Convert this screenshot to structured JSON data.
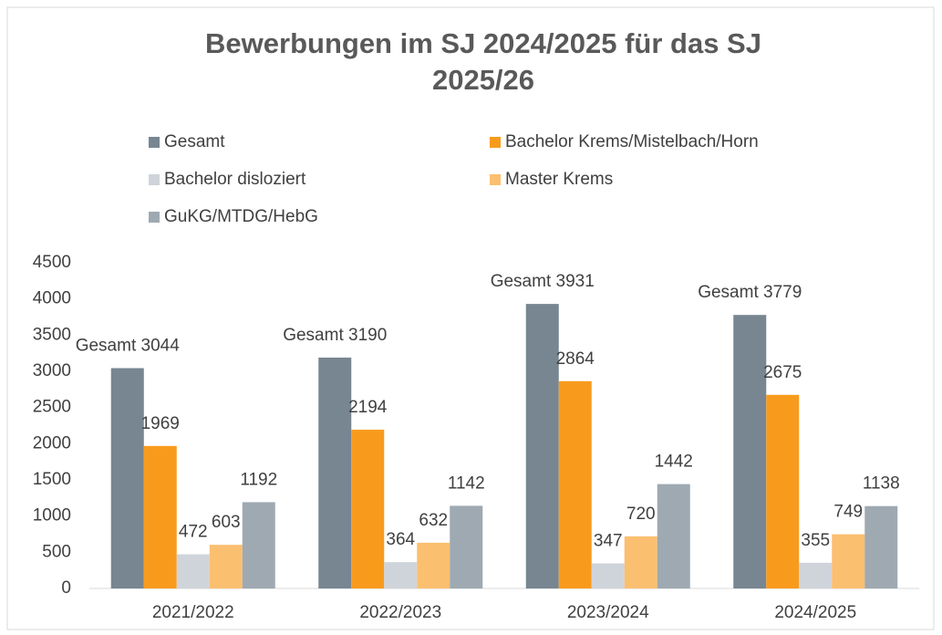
{
  "chart_data": {
    "type": "bar",
    "title": "Bewerbungen im SJ 2024/2025 für das SJ 2025/26",
    "categories": [
      "2021/2022",
      "2022/2023",
      "2023/2024",
      "2024/2025"
    ],
    "series": [
      {
        "name": "Gesamt",
        "color": "#778691",
        "values": [
          3044,
          3190,
          3931,
          3779
        ],
        "value_labels": [
          "Gesamt 3044",
          "Gesamt 3190",
          "Gesamt 3931",
          "Gesamt 3779"
        ]
      },
      {
        "name": "Bachelor Krems/Mistelbach/Horn",
        "color": "#f89b1d",
        "values": [
          1969,
          2194,
          2864,
          2675
        ]
      },
      {
        "name": "Bachelor disloziert",
        "color": "#cfd4da",
        "values": [
          472,
          364,
          347,
          355
        ]
      },
      {
        "name": "Master Krems",
        "color": "#fbbf70",
        "values": [
          603,
          632,
          720,
          749
        ]
      },
      {
        "name": "GuKG/MTDG/HebG",
        "color": "#9ea9b2",
        "values": [
          1192,
          1142,
          1442,
          1138
        ]
      }
    ],
    "ylim": [
      0,
      4500
    ],
    "yticks": [
      0,
      500,
      1000,
      1500,
      2000,
      2500,
      3000,
      3500,
      4000,
      4500
    ],
    "grid": false,
    "legend": "top"
  }
}
